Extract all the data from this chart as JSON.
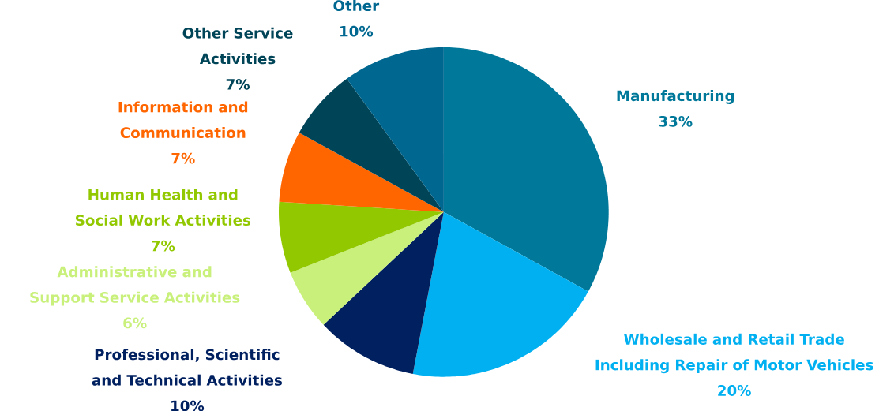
{
  "chart_data": {
    "type": "pie",
    "categories": [
      "Manufacturing",
      "Wholesale and Retail Trade Including Repair of Motor Vehicles",
      "Professional, Scientific and Technical Activities",
      "Administrative and Support Service Activities",
      "Human Health and Social Work Activities",
      "Information and Communication",
      "Other Service Activities",
      "Other"
    ],
    "values": [
      33,
      20,
      10,
      6,
      7,
      7,
      7,
      10
    ],
    "value_labels": [
      "33%",
      "20%",
      "10%",
      "6%",
      "7%",
      "7%",
      "7%",
      "10%"
    ],
    "colors": [
      "#00789a",
      "#00b0f0",
      "#002060",
      "#c8f07a",
      "#92c800",
      "#ff6600",
      "#004458",
      "#006890"
    ]
  }
}
